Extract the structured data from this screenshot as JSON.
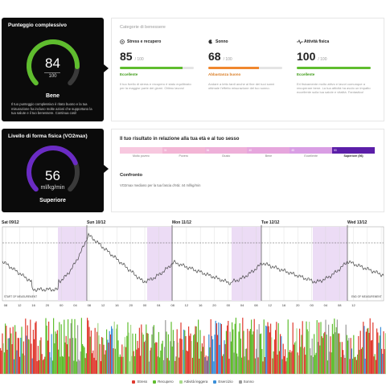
{
  "overall": {
    "title": "Punteggio complessivo",
    "value": "84",
    "max": "100",
    "fraction": 0.84,
    "label": "Bene",
    "description": "Il tuo punteggio complessivo è ritato buono e la tua misurazione ha incluso molte azioni che supportano la tua salute e il tuo benessere. Continua così!",
    "color": "#5fbd2e"
  },
  "categories": {
    "header": "Categorie di benessere",
    "items": [
      {
        "name": "Stress e recupero",
        "icon": "stress-recovery-icon",
        "value": "85",
        "max": "/ 100",
        "fraction": 0.85,
        "color": "#5fbd2e",
        "status": "Eccellente",
        "status_color": "#3c9a14",
        "description": "Il tuo livello di stress e recupero è stato equilibrato per la maggior parte dei giorni. Ottimo lavoro!"
      },
      {
        "name": "Sonno",
        "icon": "sleep-icon",
        "value": "68",
        "max": "/ 100",
        "fraction": 0.68,
        "color": "#f0872e",
        "status": "Abbastanza buono",
        "status_color": "#d97b22",
        "description": "Andare a letto tardi anche al fine dei tuoi sonni ottimale l'effetto misurazione del tuo sonno."
      },
      {
        "name": "Attività fisica",
        "icon": "activity-icon",
        "value": "100",
        "max": "/ 100",
        "fraction": 1.0,
        "color": "#5fbd2e",
        "status": "Eccellente",
        "status_color": "#3c9a14",
        "description": "Eri fisicamente molto attivo e lavori comunque a recuperare bene. La tua attività ha avuto un impatto eccellente sulla tua salute e vitalità. Fantastico!"
      }
    ]
  },
  "fitness": {
    "title": "Livello di forma fisica (VO2max)",
    "value": "56",
    "unit": "ml/kg/min",
    "fraction": 0.75,
    "label": "Superiore",
    "color": "#6a2bc4"
  },
  "vo2": {
    "title": "Il tuo risultato in relazione alla tua età e al tuo sesso",
    "segments": [
      {
        "label": "Molto povero",
        "value": "",
        "color": "#f7c8df"
      },
      {
        "label": "Povero",
        "value": "31",
        "color": "#f3b5d5"
      },
      {
        "label": "Giusto",
        "value": "36",
        "color": "#eeb0d9"
      },
      {
        "label": "Bene",
        "value": "40",
        "color": "#e6a6dd"
      },
      {
        "label": "Eccellente",
        "value": "45",
        "color": "#d99ee4"
      },
      {
        "label": "Superiore (56)",
        "value": "53",
        "color": "#5b1ea8"
      }
    ],
    "compare_title": "Confronto",
    "compare_desc": "VO2max mediano per la tua fascia d'età: 44 ml/kg/min"
  },
  "days": [
    "Sat 09/12",
    "Sun 10/12",
    "Mon 11/12",
    "Tue 12/12",
    "Wed 13/12"
  ],
  "hour_ticks": [
    "08",
    "12",
    "16",
    "20",
    "00",
    "04",
    "08",
    "12",
    "16",
    "20",
    "00",
    "04",
    "08",
    "12",
    "16",
    "20",
    "00",
    "04",
    "08",
    "12",
    "16",
    "20",
    "00",
    "04",
    "08",
    "12"
  ],
  "markers": {
    "start": "START OF MEASUREMENT",
    "end": "END OF MEASUREMENT"
  },
  "legend": [
    {
      "label": "Stress",
      "color": "#e03a2f"
    },
    {
      "label": "Recupero",
      "color": "#5fbd2e"
    },
    {
      "label": "Attività leggera",
      "color": "#a8d98a"
    },
    {
      "label": "Esercizio",
      "color": "#3a8fd9"
    },
    {
      "label": "Sonno",
      "color": "#9a9a9a"
    }
  ]
}
